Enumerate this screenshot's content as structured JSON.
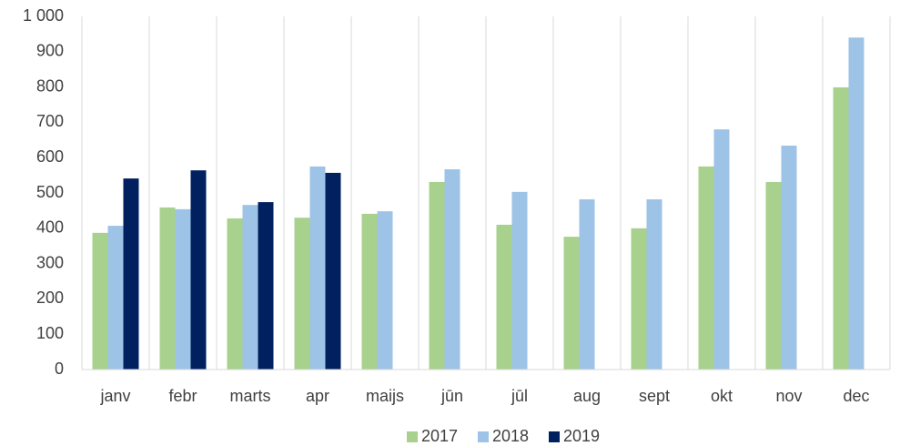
{
  "chart_data": {
    "type": "bar",
    "categories": [
      "janv",
      "febr",
      "marts",
      "apr",
      "maijs",
      "jūn",
      "jūl",
      "aug",
      "sept",
      "okt",
      "nov",
      "dec"
    ],
    "series": [
      {
        "name": "2017",
        "color": "#a9d18e",
        "values": [
          387,
          459,
          428,
          430,
          441,
          531,
          410,
          376,
          400,
          575,
          531,
          799
        ]
      },
      {
        "name": "2018",
        "color": "#9dc3e6",
        "values": [
          407,
          454,
          466,
          575,
          448,
          567,
          503,
          482,
          482,
          680,
          634,
          940
        ]
      },
      {
        "name": "2019",
        "color": "#002060",
        "values": [
          541,
          564,
          474,
          557,
          null,
          null,
          null,
          null,
          null,
          null,
          null,
          null
        ]
      }
    ],
    "ylim": [
      0,
      1000
    ],
    "yticks": [
      0,
      100,
      200,
      300,
      400,
      500,
      600,
      700,
      800,
      900,
      {
        "value": 1000,
        "label": "1 000"
      }
    ],
    "legend": "bottom"
  }
}
